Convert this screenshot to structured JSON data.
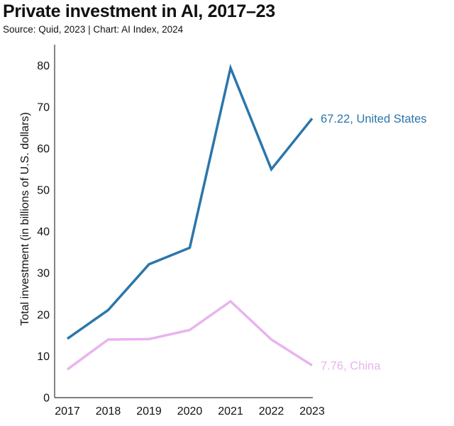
{
  "chart_data": {
    "type": "line",
    "title": "Private investment in AI, 2017–23",
    "subtitle": "Source: Quid, 2023 | Chart: AI Index, 2024",
    "ylabel": "Total investment (in billions of U.S. dollars)",
    "xlabel": "",
    "x": [
      "2017",
      "2018",
      "2019",
      "2020",
      "2021",
      "2022",
      "2023"
    ],
    "ylim": [
      0,
      85
    ],
    "yticks": [
      0,
      10,
      20,
      30,
      40,
      50,
      60,
      70,
      80
    ],
    "grid": false,
    "series": [
      {
        "name": "United States",
        "color": "#2b76aa",
        "values": [
          14.2,
          21.1,
          32.1,
          36.1,
          79.4,
          55.0,
          67.22
        ],
        "end_label": "67.22, United States"
      },
      {
        "name": "China",
        "color": "#e8b4ee",
        "values": [
          6.8,
          14.0,
          14.1,
          16.3,
          23.2,
          14.0,
          7.76
        ],
        "end_label": "7.76, China"
      }
    ]
  }
}
